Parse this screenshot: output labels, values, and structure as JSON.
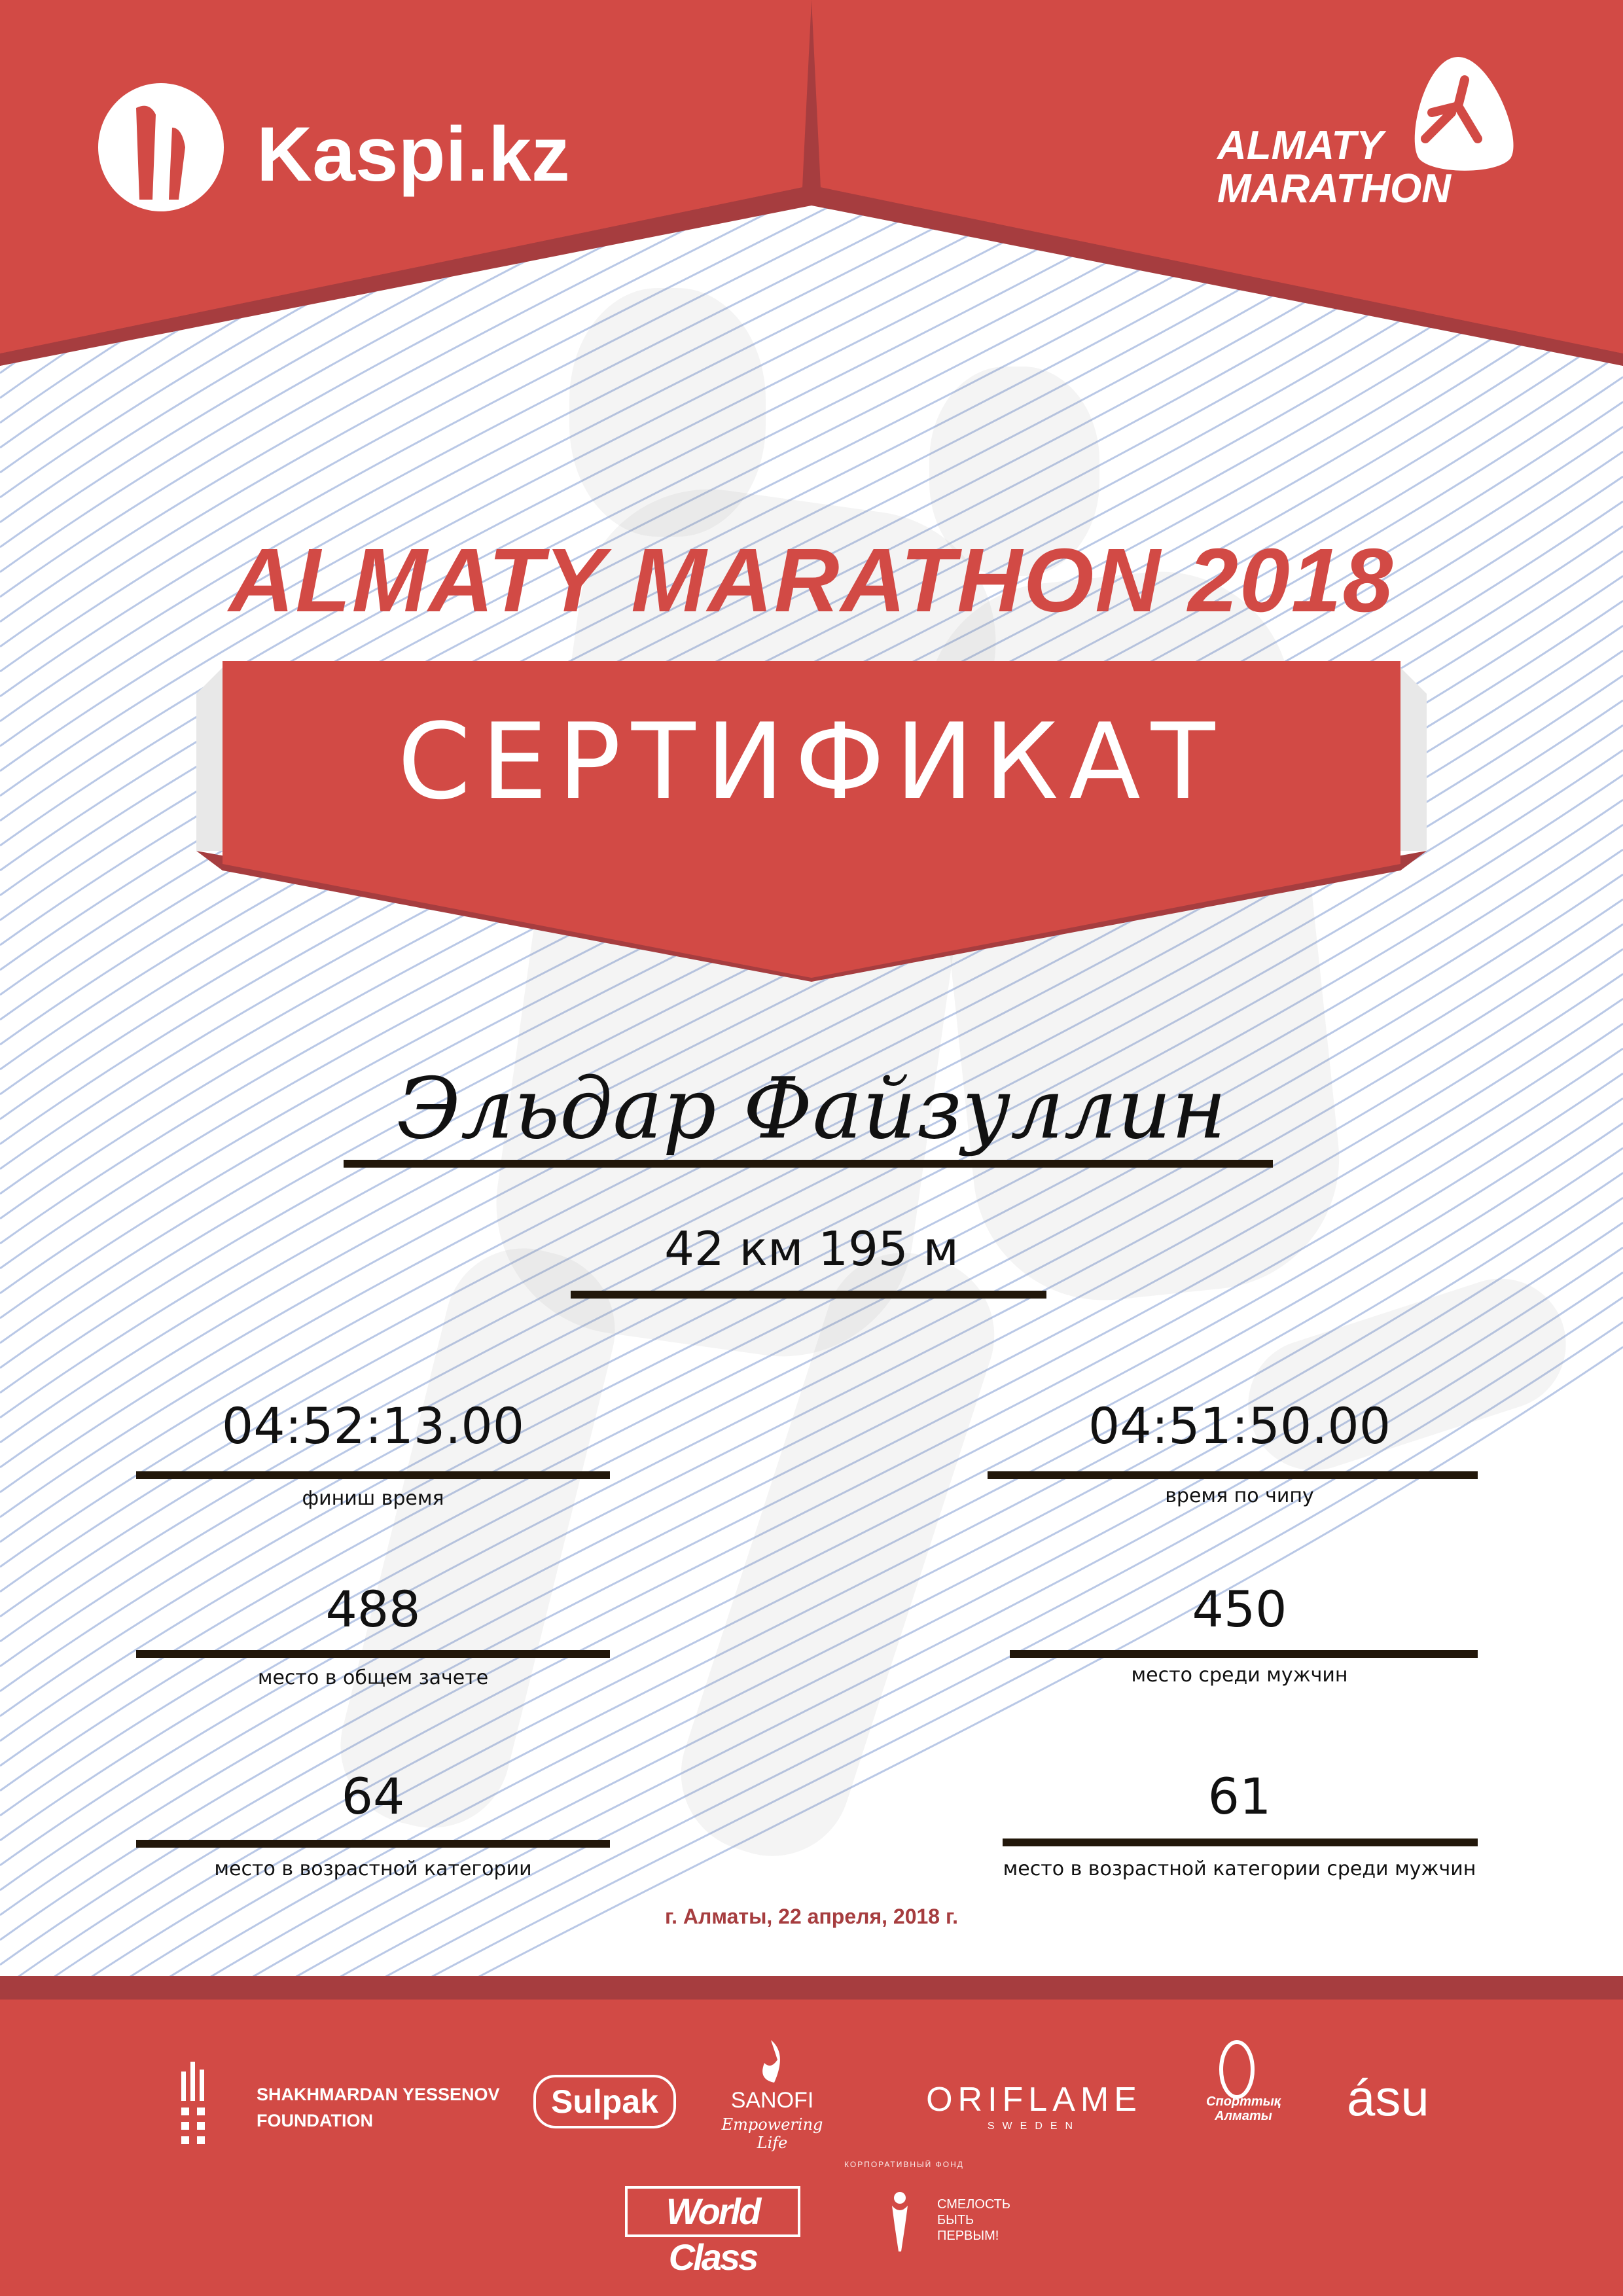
{
  "colors": {
    "brand_red": "#d24a45",
    "dark_red": "#a63d3f",
    "line_color": "#22170a",
    "pattern_blue": "#b9c8e6"
  },
  "header": {
    "kaspi_logo": "Kaspi.kz",
    "marathon_logo": {
      "line1": "ALMATY",
      "line2": "MARATHON"
    }
  },
  "event_title": "ALMATY MARATHON 2018",
  "certificate_title": "СЕРТИФИКАТ",
  "participant": {
    "name": "Эльдар Файзуллин",
    "distance": "42 км 195 м"
  },
  "results": {
    "finish_time": {
      "value": "04:52:13.00",
      "label": "финиш время"
    },
    "chip_time": {
      "value": "04:51:50.00",
      "label": "время по чипу"
    },
    "overall_place": {
      "value": "488",
      "label": "место в общем зачете"
    },
    "male_place": {
      "value": "450",
      "label": "место среди мужчин"
    },
    "age_place": {
      "value": "64",
      "label": "место в возрастной категории"
    },
    "age_male_place": {
      "value": "61",
      "label": "место в возрастной категории среди мужчин"
    }
  },
  "date_line": "г. Алматы, 22 апреля, 2018 г.",
  "sponsors": {
    "yessenov": {
      "line1": "SHAKHMARDAN YESSENOV",
      "line2": "FOUNDATION"
    },
    "sulpak": "Sulpak",
    "sanofi": {
      "name": "SANOFI",
      "tagline": "Empowering Life"
    },
    "oriflame": {
      "name": "ORIFLAME",
      "sub": "SWEDEN"
    },
    "sport_almaty": {
      "line1": "Спорттық",
      "line2": "Алматы"
    },
    "asu": "ásu",
    "world_class": "World Class",
    "fund": {
      "line1": "СМЕЛОСТЬ",
      "line2": "БЫТЬ",
      "line3": "ПЕРВЫМ!",
      "arc": "КОРПОРАТИВНЫЙ ФОНД"
    }
  }
}
